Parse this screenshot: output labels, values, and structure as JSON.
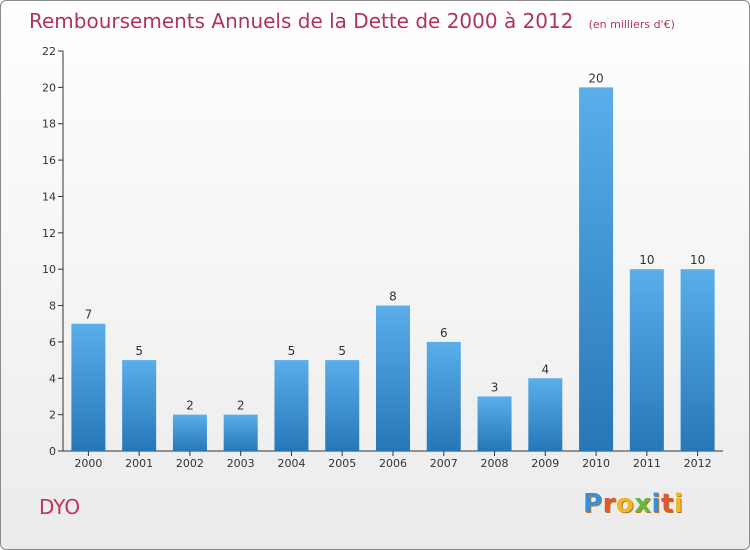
{
  "chart_data": {
    "type": "bar",
    "title": "Remboursements Annuels de la Dette de 2000 à 2012",
    "subtitle": "(en milliers d'€)",
    "categories": [
      "2000",
      "2001",
      "2002",
      "2003",
      "2004",
      "2005",
      "2006",
      "2007",
      "2008",
      "2009",
      "2010",
      "2011",
      "2012"
    ],
    "values": [
      7,
      5,
      2,
      2,
      5,
      5,
      8,
      6,
      3,
      4,
      20,
      10,
      10
    ],
    "data_labels": [
      "7",
      "5",
      "2",
      "2",
      "5",
      "5",
      "8",
      "6",
      "3",
      "4",
      "20",
      "10",
      "10"
    ],
    "yticks": [
      "0",
      "2",
      "4",
      "6",
      "8",
      "10",
      "12",
      "14",
      "16",
      "18",
      "20",
      "22"
    ],
    "ylim": [
      0,
      22
    ],
    "grid": false,
    "bar_color_top": "#5aaeea",
    "bar_color_bottom": "#2677b8"
  },
  "commune": "DYO",
  "logo": {
    "letters": [
      {
        "ch": "P",
        "color": "#3a8fd6"
      },
      {
        "ch": "r",
        "color": "#e0592a"
      },
      {
        "ch": "o",
        "color": "#f2b526"
      },
      {
        "ch": "x",
        "color": "#6cb83a"
      },
      {
        "ch": "i",
        "color": "#3a8fd6"
      },
      {
        "ch": "t",
        "color": "#e0592a"
      },
      {
        "ch": "i",
        "color": "#f2b526"
      }
    ]
  },
  "colors": {
    "title": "#b0335a",
    "axis": "#333333"
  }
}
